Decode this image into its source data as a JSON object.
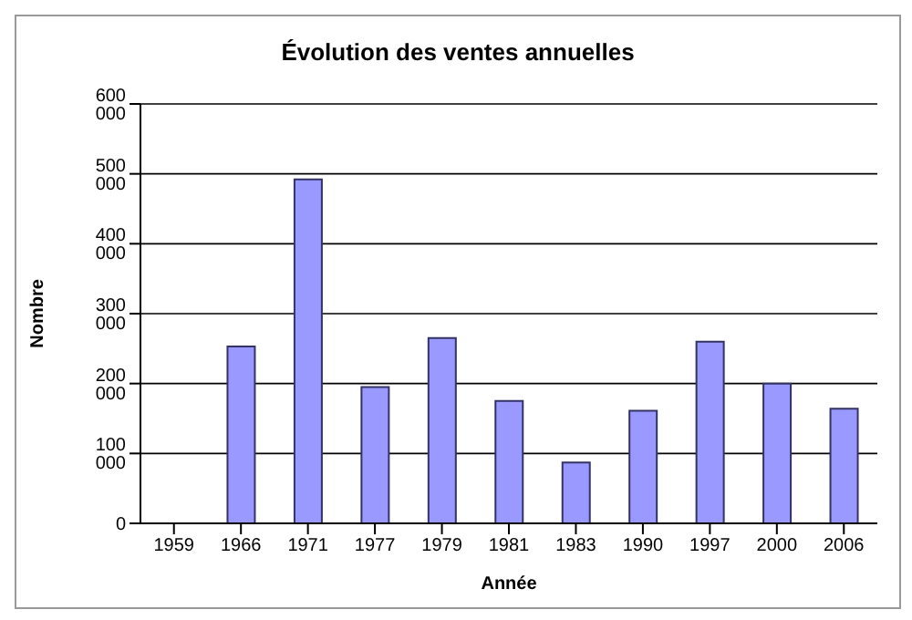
{
  "chart_data": {
    "type": "bar",
    "title": "Évolution des ventes annuelles",
    "xlabel": "Année",
    "ylabel": "Nombre",
    "categories": [
      "1959",
      "1966",
      "1971",
      "1977",
      "1979",
      "1981",
      "1983",
      "1990",
      "1997",
      "2000",
      "2006"
    ],
    "values": [
      null,
      253000,
      492000,
      195000,
      265000,
      175000,
      87000,
      161000,
      260000,
      200000,
      164000
    ],
    "color": "#9999ff",
    "ylim": [
      0,
      600000
    ],
    "yticks": [
      {
        "value": 0,
        "label": "0"
      },
      {
        "value": 100000,
        "label": "100 000"
      },
      {
        "value": 200000,
        "label": "200 000"
      },
      {
        "value": 300000,
        "label": "300 000"
      },
      {
        "value": 400000,
        "label": "400 000"
      },
      {
        "value": 500000,
        "label": "500 000"
      },
      {
        "value": 600000,
        "label": "600 000"
      }
    ],
    "grid": "y",
    "legend": false
  }
}
